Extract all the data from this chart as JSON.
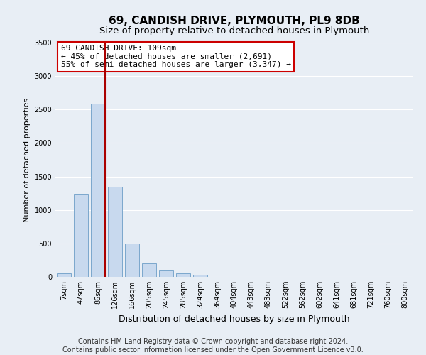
{
  "title": "69, CANDISH DRIVE, PLYMOUTH, PL9 8DB",
  "subtitle": "Size of property relative to detached houses in Plymouth",
  "xlabel": "Distribution of detached houses by size in Plymouth",
  "ylabel": "Number of detached properties",
  "footer_lines": [
    "Contains HM Land Registry data © Crown copyright and database right 2024.",
    "Contains public sector information licensed under the Open Government Licence v3.0."
  ],
  "bar_labels": [
    "7sqm",
    "47sqm",
    "86sqm",
    "126sqm",
    "166sqm",
    "205sqm",
    "245sqm",
    "285sqm",
    "324sqm",
    "364sqm",
    "404sqm",
    "443sqm",
    "483sqm",
    "522sqm",
    "562sqm",
    "602sqm",
    "641sqm",
    "681sqm",
    "721sqm",
    "760sqm",
    "800sqm"
  ],
  "bar_values": [
    50,
    1240,
    2590,
    1350,
    500,
    200,
    110,
    50,
    30,
    0,
    0,
    0,
    0,
    0,
    0,
    0,
    0,
    0,
    0,
    0,
    0
  ],
  "bar_color": "#c8d9ee",
  "bar_edge_color": "#7ba7cc",
  "vline_index": 2,
  "vline_color": "#aa0000",
  "ylim": [
    0,
    3500
  ],
  "yticks": [
    0,
    500,
    1000,
    1500,
    2000,
    2500,
    3000,
    3500
  ],
  "annotation_box_text": "69 CANDISH DRIVE: 109sqm\n← 45% of detached houses are smaller (2,691)\n55% of semi-detached houses are larger (3,347) →",
  "annotation_box_color": "#ffffff",
  "annotation_box_edge_color": "#cc0000",
  "background_color": "#e8eef5",
  "plot_bg_color": "#e8eef5",
  "grid_color": "#ffffff",
  "title_fontsize": 11,
  "subtitle_fontsize": 9.5,
  "xlabel_fontsize": 9,
  "ylabel_fontsize": 8,
  "tick_fontsize": 7,
  "footer_fontsize": 7,
  "ann_fontsize": 8
}
